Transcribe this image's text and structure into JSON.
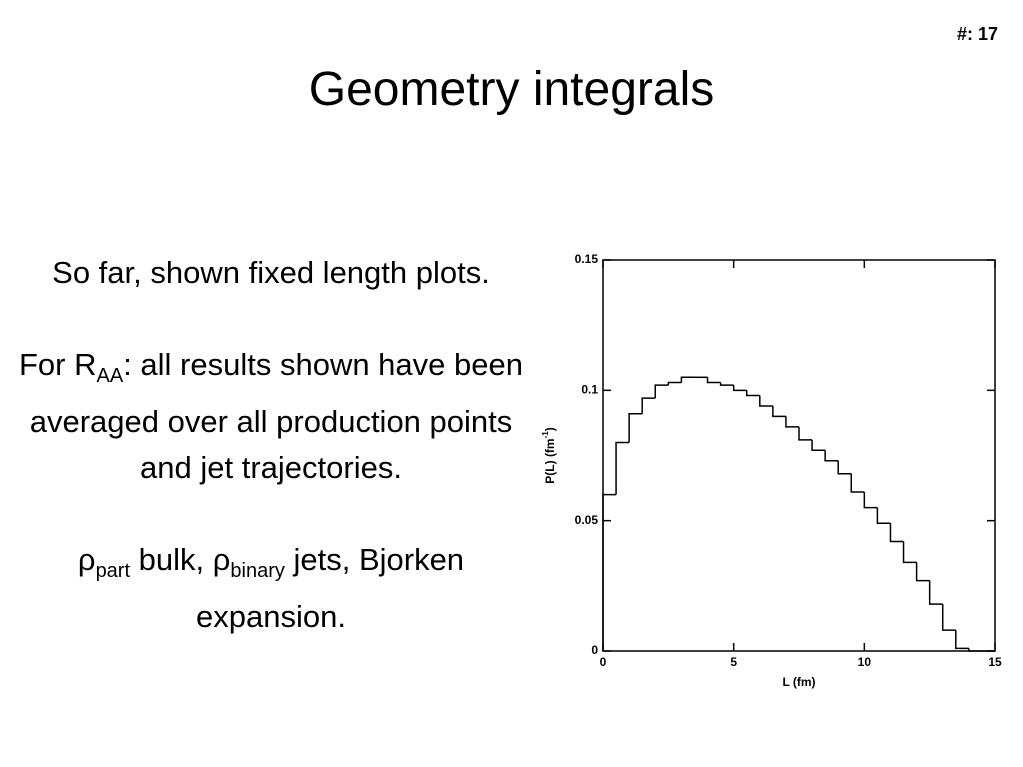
{
  "slide_number": "#: 17",
  "title": "Geometry integrals",
  "body": [
    [
      {
        "text": "So far, shown fixed length plots."
      }
    ],
    [
      {
        "text": "For R"
      },
      {
        "sub": "AA"
      },
      {
        "text": ": all results shown have been averaged over all production points and jet trajectories."
      }
    ],
    [
      {
        "text": "ρ"
      },
      {
        "sub": "part"
      },
      {
        "text": " bulk, ρ"
      },
      {
        "sub": "binary"
      },
      {
        "text": " jets, Bjorken expansion."
      }
    ]
  ],
  "chart_data": {
    "type": "histogram",
    "xlabel": "L (fm)",
    "ylabel": {
      "text": "P(L) (fm",
      "sup": "-1",
      "end": ")"
    },
    "bins": [
      0,
      0.5,
      1,
      1.5,
      2,
      2.5,
      3,
      3.5,
      4,
      4.5,
      5,
      5.5,
      6,
      6.5,
      7,
      7.5,
      8,
      8.5,
      9,
      9.5,
      10,
      10.5,
      11,
      11.5,
      12,
      12.5,
      13,
      13.5,
      14,
      14.5,
      15
    ],
    "values": [
      0.06,
      0.08,
      0.091,
      0.097,
      0.102,
      0.103,
      0.105,
      0.105,
      0.103,
      0.102,
      0.1,
      0.098,
      0.094,
      0.09,
      0.086,
      0.081,
      0.077,
      0.073,
      0.068,
      0.061,
      0.055,
      0.049,
      0.042,
      0.034,
      0.027,
      0.018,
      0.008,
      0.001,
      0,
      0
    ],
    "color": "#000000",
    "xlim": [
      0,
      15
    ],
    "xticks": [
      0,
      5,
      10,
      15
    ],
    "ylim": [
      0,
      0.15
    ],
    "yticks": [
      0,
      0.05,
      0.1,
      0.15
    ]
  }
}
